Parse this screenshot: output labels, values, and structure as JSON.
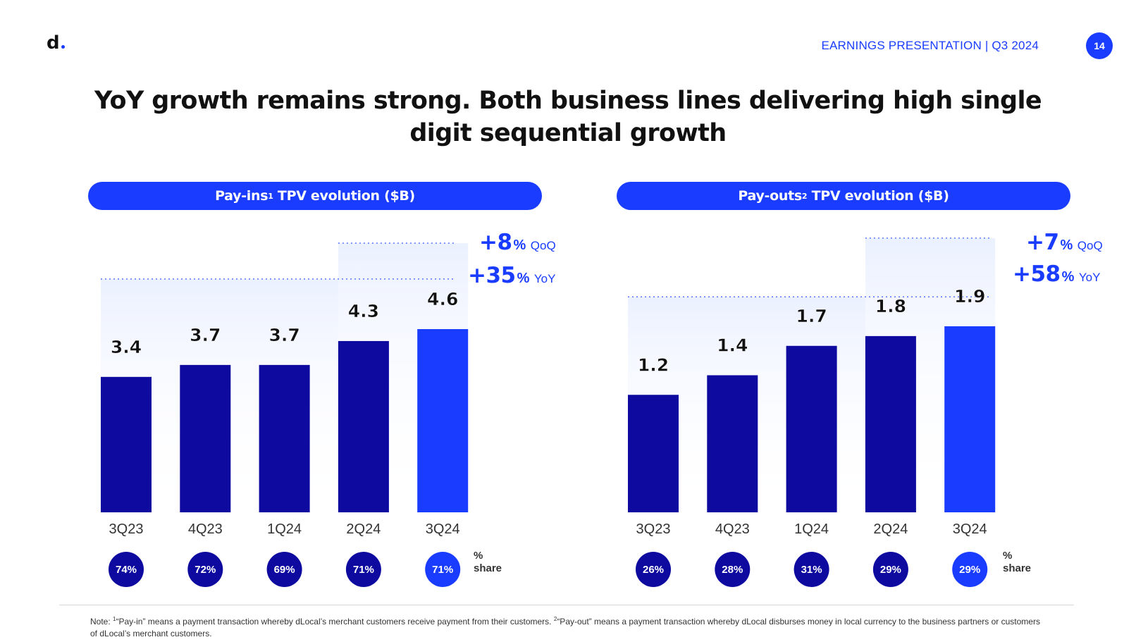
{
  "header": {
    "logo": "d",
    "presentation": "EARNINGS PRESENTATION | Q3 2024",
    "page_number": "14"
  },
  "title": "YoY growth remains strong. Both business lines delivering high single digit sequential growth",
  "colors": {
    "accent": "#1a3cff",
    "dark_bar": "#0e0aa0",
    "text": "#111111"
  },
  "share_label_line1": "%",
  "share_label_line2": "share",
  "footnote": {
    "n1": "1",
    "text1": "“Pay-in” means a payment transaction whereby dLocal’s merchant customers receive payment from their customers.",
    "n2": "2",
    "text2": "“Pay-out” means a payment transaction whereby dLocal disburses money in local currency to the business partners or customers of dLocal’s merchant customers.",
    "prefix": "Note: "
  },
  "chart_data": [
    {
      "type": "bar",
      "title_main": "Pay-ins",
      "title_sup": "1",
      "title_rest": " TPV evolution ($B)",
      "categories": [
        "3Q23",
        "4Q23",
        "1Q24",
        "2Q24",
        "3Q24"
      ],
      "values": [
        3.4,
        3.7,
        3.7,
        4.3,
        4.6
      ],
      "value_labels": [
        "3.4",
        "3.7",
        "3.7",
        "4.3",
        "4.6"
      ],
      "share": [
        "74%",
        "72%",
        "69%",
        "71%",
        "71%"
      ],
      "highlight_index": 4,
      "ylim": [
        0,
        4.6
      ],
      "qoq": {
        "value": "+8",
        "pct": "%",
        "label": "QoQ"
      },
      "yoy": {
        "value": "+35",
        "pct": "%",
        "label": "YoY"
      }
    },
    {
      "type": "bar",
      "title_main": "Pay-outs",
      "title_sup": "2",
      "title_rest": " TPV evolution ($B)",
      "categories": [
        "3Q23",
        "4Q23",
        "1Q24",
        "2Q24",
        "3Q24"
      ],
      "values": [
        1.2,
        1.4,
        1.7,
        1.8,
        1.9
      ],
      "value_labels": [
        "1.2",
        "1.4",
        "1.7",
        "1.8",
        "1.9"
      ],
      "share": [
        "26%",
        "28%",
        "31%",
        "29%",
        "29%"
      ],
      "highlight_index": 4,
      "ylim": [
        0,
        1.9
      ],
      "qoq": {
        "value": "+7",
        "pct": "%",
        "label": "QoQ"
      },
      "yoy": {
        "value": "+58",
        "pct": "%",
        "label": "YoY"
      }
    }
  ]
}
